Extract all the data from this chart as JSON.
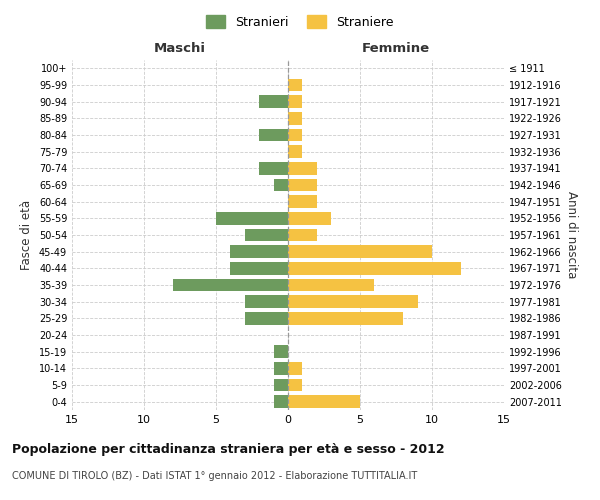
{
  "age_groups": [
    "0-4",
    "5-9",
    "10-14",
    "15-19",
    "20-24",
    "25-29",
    "30-34",
    "35-39",
    "40-44",
    "45-49",
    "50-54",
    "55-59",
    "60-64",
    "65-69",
    "70-74",
    "75-79",
    "80-84",
    "85-89",
    "90-94",
    "95-99",
    "100+"
  ],
  "birth_years": [
    "2007-2011",
    "2002-2006",
    "1997-2001",
    "1992-1996",
    "1987-1991",
    "1982-1986",
    "1977-1981",
    "1972-1976",
    "1967-1971",
    "1962-1966",
    "1957-1961",
    "1952-1956",
    "1947-1951",
    "1942-1946",
    "1937-1941",
    "1932-1936",
    "1927-1931",
    "1922-1926",
    "1917-1921",
    "1912-1916",
    "≤ 1911"
  ],
  "maschi": [
    1,
    1,
    1,
    1,
    0,
    3,
    3,
    8,
    4,
    4,
    3,
    5,
    0,
    1,
    2,
    0,
    2,
    0,
    2,
    0,
    0
  ],
  "femmine": [
    5,
    1,
    1,
    0,
    0,
    8,
    9,
    6,
    12,
    10,
    2,
    3,
    2,
    2,
    2,
    1,
    1,
    1,
    1,
    1,
    0
  ],
  "maschi_color": "#6d9b5e",
  "femmine_color": "#f5c242",
  "xlim": 15,
  "title": "Popolazione per cittadinanza straniera per età e sesso - 2012",
  "subtitle": "COMUNE DI TIROLO (BZ) - Dati ISTAT 1° gennaio 2012 - Elaborazione TUTTITALIA.IT",
  "legend_stranieri": "Stranieri",
  "legend_straniere": "Straniere",
  "maschi_label": "Maschi",
  "femmine_label": "Femmine",
  "fasce_label": "Fasce di età",
  "anni_label": "Anni di nascita",
  "bg_color": "#ffffff",
  "grid_color": "#cccccc"
}
